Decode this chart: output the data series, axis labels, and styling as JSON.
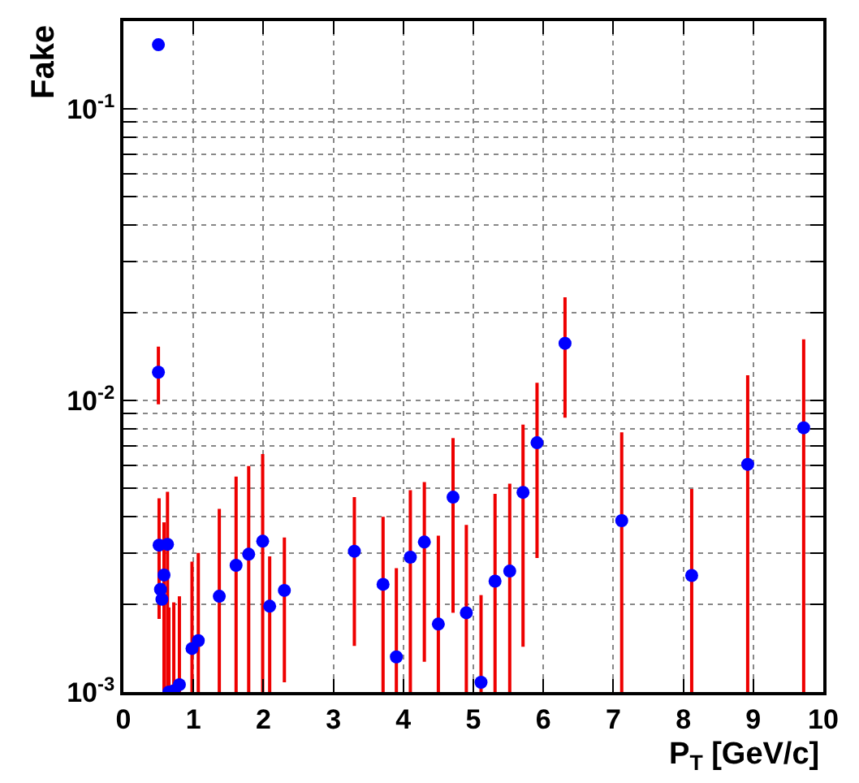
{
  "chart_data": {
    "type": "scatter",
    "xlabel": "P$_{T}$ [GeV/c]",
    "ylabel": "Fake",
    "x": [
      0.5,
      0.5,
      0.51,
      0.63,
      0.58,
      0.53,
      0.55,
      0.65,
      0.72,
      0.8,
      0.98,
      1.07,
      1.37,
      1.61,
      1.79,
      1.99,
      2.09,
      2.3,
      3.3,
      3.71,
      3.9,
      4.1,
      4.3,
      4.5,
      4.71,
      4.9,
      5.11,
      5.31,
      5.52,
      5.71,
      5.91,
      6.31,
      7.12,
      8.12,
      8.92,
      9.72
    ],
    "series": [
      {
        "color": "#0000ff",
        "values": [
          0.166,
          0.0125,
          0.00319,
          0.00321,
          0.00252,
          0.00225,
          0.00208,
          0.001,
          0.00101,
          0.00106,
          0.00141,
          0.0015,
          0.00213,
          0.00272,
          0.00297,
          0.00329,
          0.00197,
          0.00223,
          0.00304,
          0.00234,
          0.00132,
          0.0029,
          0.00327,
          0.00171,
          0.00466,
          0.00187,
          0.00108,
          0.0024,
          0.0026,
          0.00484,
          0.00716,
          0.0157,
          0.00387,
          0.00251,
          0.00604,
          0.00806
        ],
        "errors": [
          null,
          [
            0.0097,
            0.0153
          ],
          [
            0.00178,
            0.00462
          ],
          [
            0.001,
            0.00486
          ],
          [
            0.001,
            0.00382
          ],
          null,
          null,
          [
            0.001,
            0.00195
          ],
          [
            0.001,
            0.00203
          ],
          [
            0.001,
            0.00213
          ],
          [
            0.001,
            0.0028
          ],
          [
            0.001,
            0.003
          ],
          [
            0.001,
            0.00425
          ],
          [
            0.001,
            0.00548
          ],
          [
            0.001,
            0.00596
          ],
          [
            0.001,
            0.00655
          ],
          [
            0.001,
            0.00292
          ],
          [
            0.00108,
            0.00339
          ],
          [
            0.00144,
            0.00466
          ],
          [
            0.001,
            0.00399
          ],
          [
            0.001,
            0.00266
          ],
          [
            0.001,
            0.00492
          ],
          [
            0.00127,
            0.00525
          ],
          [
            0.001,
            0.00344
          ],
          [
            0.00187,
            0.00743
          ],
          [
            0.001,
            0.00374
          ],
          [
            0.001,
            0.00215
          ],
          [
            0.001,
            0.00478
          ],
          [
            0.001,
            0.00518
          ],
          [
            0.00143,
            0.00826
          ],
          [
            0.00288,
            0.0115
          ],
          [
            0.00873,
            0.0226
          ],
          [
            0.001,
            0.00778
          ],
          [
            0.001,
            0.00497
          ],
          [
            0.001,
            0.0122
          ],
          [
            0.001,
            0.0162
          ]
        ]
      }
    ],
    "xlim": [
      0,
      10
    ],
    "xticks": [
      0,
      1,
      2,
      3,
      4,
      5,
      6,
      7,
      8,
      9,
      10
    ],
    "ylim": [
      0.001,
      0.2
    ],
    "log": true,
    "yticks": [
      {
        "value": 0.001,
        "label": "10$^{-3}$"
      },
      {
        "value": 0.002,
        "label": null
      },
      {
        "value": 0.003,
        "label": null
      },
      {
        "value": 0.004,
        "label": null
      },
      {
        "value": 0.005,
        "label": null
      },
      {
        "value": 0.006,
        "label": null
      },
      {
        "value": 0.007,
        "label": null
      },
      {
        "value": 0.008,
        "label": null
      },
      {
        "value": 0.009,
        "label": null
      },
      {
        "value": 0.01,
        "label": "10$^{-2}$"
      },
      {
        "value": 0.02,
        "label": null
      },
      {
        "value": 0.03,
        "label": null
      },
      {
        "value": 0.04,
        "label": null
      },
      {
        "value": 0.05,
        "label": null
      },
      {
        "value": 0.06,
        "label": null
      },
      {
        "value": 0.07,
        "label": null
      },
      {
        "value": 0.08,
        "label": null
      },
      {
        "value": 0.09,
        "label": null
      },
      {
        "value": 0.1,
        "label": "10$^{-1}$"
      }
    ],
    "grid": true,
    "marker": "circle"
  }
}
